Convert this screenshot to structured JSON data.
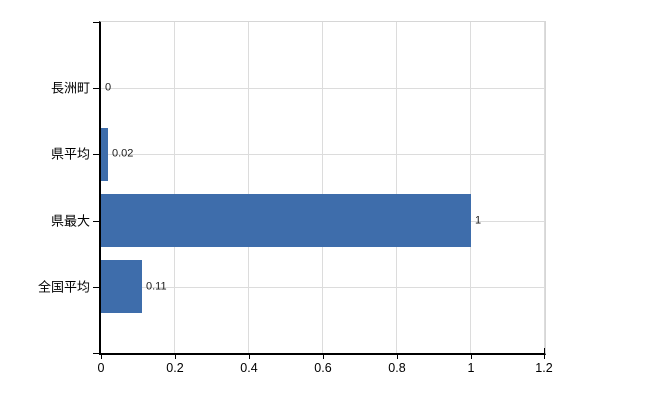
{
  "chart_data": {
    "type": "bar",
    "orientation": "horizontal",
    "title": "",
    "xlabel": "",
    "ylabel": "",
    "categories": [
      "長洲町",
      "県平均",
      "県最大",
      "全国平均"
    ],
    "values": [
      0,
      0.02,
      1,
      0.11
    ],
    "value_labels": [
      "0",
      "0.02",
      "1",
      "0.11"
    ],
    "xlim": [
      0,
      1.2
    ],
    "xticks": [
      0,
      0.2,
      0.4,
      0.6,
      0.8,
      1,
      1.2
    ],
    "xtick_labels": [
      "0",
      "0.2",
      "0.4",
      "0.6",
      "0.8",
      "1",
      "1.2"
    ],
    "grid": true,
    "legend": false,
    "colors": {
      "bar": "#3e6dab",
      "grid": "#dcdcdc",
      "frame": "#d6d6d6",
      "axis": "#000000",
      "text": "#000000"
    }
  }
}
